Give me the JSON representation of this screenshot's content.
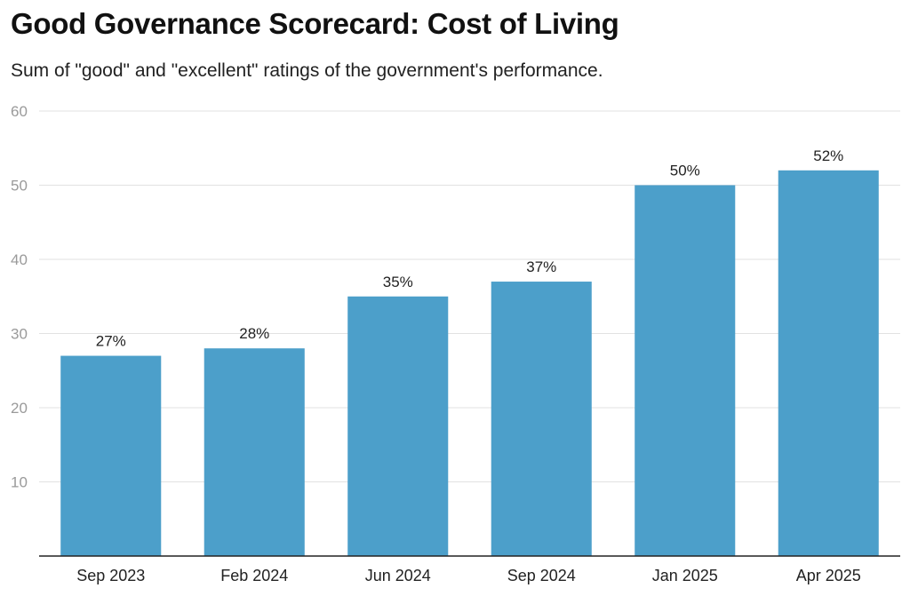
{
  "chart_data": {
    "type": "bar",
    "title": "Good Governance Scorecard: Cost of Living",
    "subtitle": "Sum of \"good\" and \"excellent\" ratings of the government's performance.",
    "categories": [
      "Sep 2023",
      "Feb 2024",
      "Jun 2024",
      "Sep 2024",
      "Jan 2025",
      "Apr 2025"
    ],
    "values": [
      27,
      28,
      35,
      37,
      50,
      52
    ],
    "data_labels": [
      "27%",
      "28%",
      "35%",
      "37%",
      "50%",
      "52%"
    ],
    "y_ticks": [
      10,
      20,
      30,
      40,
      50,
      60
    ],
    "ylim": [
      0,
      60
    ],
    "xlabel": "",
    "ylabel": "",
    "grid": true,
    "bar_color": "#4c9fca",
    "grid_color": "#e2e2e2",
    "axis_color": "#222222"
  }
}
